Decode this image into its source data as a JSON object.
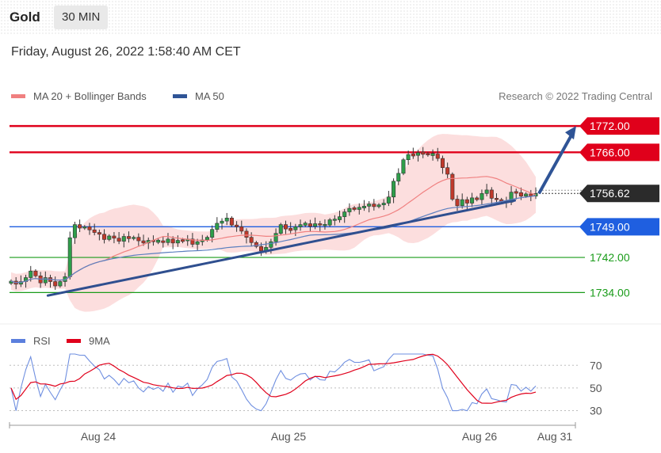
{
  "header": {
    "symbol": "Gold",
    "timeframe": "30 MIN",
    "datetime": "Friday, August 26, 2022 1:58:40 AM CET"
  },
  "chart_data": [
    {
      "type": "candlestick",
      "legend": [
        {
          "name": "MA 20 + Bollinger Bands",
          "color": "#f08080"
        },
        {
          "name": "MA 50",
          "color": "#2f5496"
        }
      ],
      "credit": "Research © 2022 Trading Central",
      "ylim": [
        1729,
        1776
      ],
      "last_price": 1756.62,
      "levels": [
        {
          "value": 1772.0,
          "label": "1772.00",
          "style": "resistance",
          "color": "#e0001b"
        },
        {
          "value": 1766.0,
          "label": "1766.00",
          "style": "resistance",
          "color": "#e0001b"
        },
        {
          "value": 1749.0,
          "label": "1749.00",
          "style": "pivot",
          "color": "#1f5fe0"
        },
        {
          "value": 1742.0,
          "label": "1742.00",
          "style": "support",
          "color": "#1a9c1a"
        },
        {
          "value": 1734.0,
          "label": "1734.00",
          "style": "support",
          "color": "#1a9c1a"
        }
      ],
      "trendline": {
        "from": [
          0.07,
          1733.3
        ],
        "to": [
          0.96,
          1755.0
        ]
      },
      "forecast_arrow": {
        "from": 1756.6,
        "to": 1772.0
      },
      "closes": [
        1736.6,
        1735.9,
        1736.5,
        1737.4,
        1738.9,
        1737.8,
        1736.2,
        1737.4,
        1736.5,
        1735.5,
        1736.5,
        1737.6,
        1746.5,
        1749.5,
        1748.7,
        1749.0,
        1748.3,
        1747.7,
        1747.3,
        1746.1,
        1746.9,
        1746.4,
        1745.7,
        1746.8,
        1746.3,
        1746.6,
        1745.8,
        1745.3,
        1745.9,
        1745.6,
        1745.8,
        1745.4,
        1746.2,
        1745.3,
        1745.9,
        1745.8,
        1746.2,
        1745.0,
        1745.6,
        1746.0,
        1746.6,
        1748.4,
        1749.8,
        1750.3,
        1751.0,
        1749.4,
        1749.0,
        1748.0,
        1746.6,
        1745.4,
        1744.5,
        1743.5,
        1744.3,
        1745.6,
        1747.5,
        1749.5,
        1748.5,
        1748.3,
        1749.0,
        1749.5,
        1749.7,
        1749.1,
        1749.7,
        1749.4,
        1749.4,
        1750.6,
        1750.6,
        1751.3,
        1752.4,
        1753.2,
        1753.1,
        1753.3,
        1753.7,
        1754.2,
        1753.6,
        1754.0,
        1754.4,
        1755.8,
        1759.4,
        1761.2,
        1764.3,
        1765.5,
        1765.3,
        1765.9,
        1765.7,
        1765.4,
        1765.6,
        1764.6,
        1762.5,
        1761.0,
        1755.3,
        1753.8,
        1755.2,
        1754.4,
        1755.6,
        1755.2,
        1756.6,
        1757.4,
        1755.5,
        1755.2,
        1754.8,
        1754.6,
        1756.9,
        1756.8,
        1756.0,
        1756.5,
        1756.0,
        1756.6
      ],
      "rsi": {
        "legend": [
          {
            "name": "RSI",
            "color": "#5b7fdd"
          },
          {
            "name": "9MA",
            "color": "#e0001b"
          }
        ],
        "ticks": [
          "70",
          "50",
          "30"
        ],
        "ylim": [
          22,
          80
        ]
      },
      "x_ticks": [
        "Aug 24",
        "Aug 25",
        "Aug 26",
        "Aug 31"
      ]
    }
  ]
}
